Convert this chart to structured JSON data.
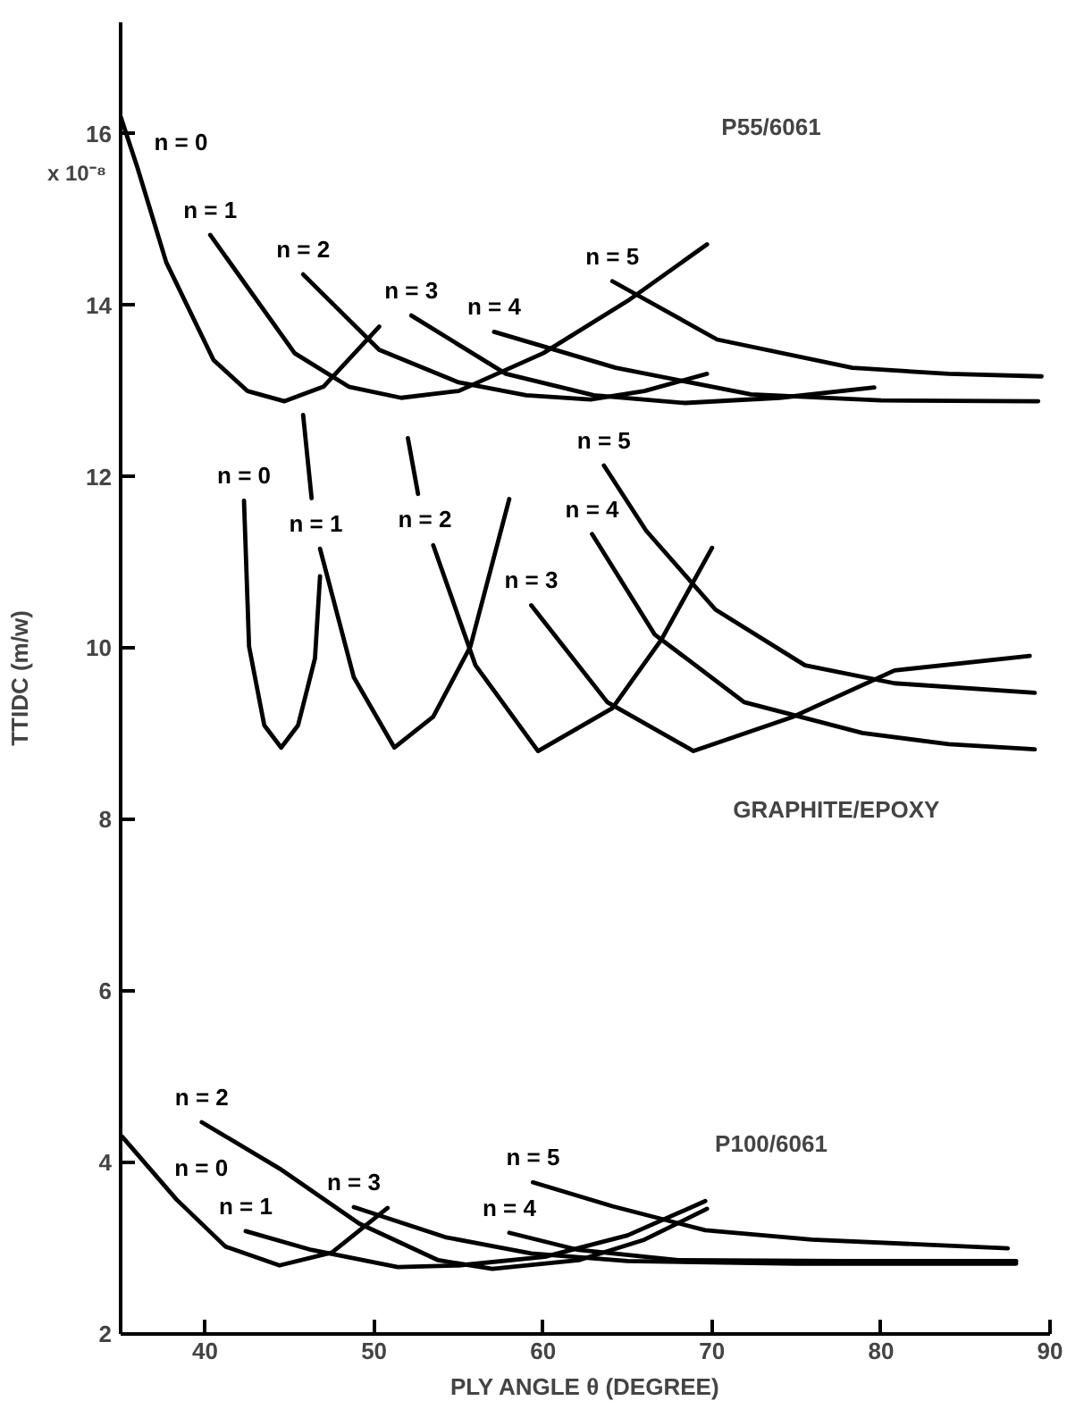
{
  "chart_data": {
    "type": "line",
    "xlabel": "PLY ANGLE θ (DEGREE)",
    "ylabel": "TTIDC (m/w)",
    "xlim": [
      35,
      90
    ],
    "ylim": [
      2,
      17.3
    ],
    "xticks": [
      40,
      50,
      60,
      70,
      80,
      90
    ],
    "yticks": [
      2,
      4,
      6,
      8,
      10,
      12,
      14,
      16
    ],
    "grid": false,
    "legend": false,
    "marker": "none",
    "line_style": "solid",
    "series": [
      {
        "name": "n = 0",
        "color": "#000000",
        "x": [
          35,
          36,
          37.7,
          40.5,
          42.5,
          44.7,
          47,
          50.3
        ],
        "values": [
          16.2,
          15.6,
          14.5,
          13.36,
          13.0,
          12.88,
          13.05,
          13.75
        ]
      },
      {
        "name": "n = 1",
        "color": "#000000",
        "x": [
          40.3,
          45.3,
          48.5,
          51.6,
          55,
          60,
          65,
          69.7
        ],
        "values": [
          14.82,
          13.44,
          13.05,
          12.92,
          13.0,
          13.44,
          14.05,
          14.71
        ]
      },
      {
        "name": "n = 2",
        "color": "#000000",
        "x": [
          45.8,
          50.3,
          55,
          59,
          62.8,
          66,
          69.7
        ],
        "values": [
          14.36,
          13.48,
          13.1,
          12.95,
          12.9,
          13.0,
          13.2
        ]
      },
      {
        "name": "n = 3",
        "color": "#000000",
        "x": [
          52.2,
          57.8,
          63,
          68.4,
          74,
          79.6
        ],
        "values": [
          13.88,
          13.2,
          12.95,
          12.86,
          12.92,
          13.04
        ]
      },
      {
        "name": "n = 4",
        "color": "#000000",
        "x": [
          57.1,
          64.3,
          72.3,
          80,
          89.3
        ],
        "values": [
          13.69,
          13.27,
          12.96,
          12.89,
          12.88
        ]
      },
      {
        "name": "n = 5",
        "color": "#000000",
        "x": [
          64.1,
          70.3,
          78.3,
          84,
          89.5
        ],
        "values": [
          14.28,
          13.6,
          13.27,
          13.2,
          13.17
        ]
      },
      {
        "name": "n = 0",
        "color": "#000000",
        "x": [
          42.3,
          42.6,
          43.5,
          44.5,
          45.5,
          46.5,
          46.8
        ],
        "values": [
          11.72,
          10.02,
          9.1,
          8.84,
          9.1,
          9.88,
          10.84
        ]
      },
      {
        "name": "n = 1",
        "color": "#000000",
        "x": [
          45.8,
          46.3,
          46.55,
          46.8,
          48.8,
          51.2,
          53.5,
          55.7,
          58.0
        ],
        "values": [
          12.72,
          11.75,
          null,
          11.16,
          9.66,
          8.84,
          9.2,
          10.02,
          11.74
        ]
      },
      {
        "name": "n = 2",
        "color": "#000000",
        "x": [
          52.0,
          52.6,
          53.0,
          53.5,
          56.0,
          59.7,
          64.1,
          67,
          70.0
        ],
        "values": [
          12.45,
          11.8,
          null,
          11.2,
          9.8,
          8.8,
          9.3,
          10.1,
          11.17
        ]
      },
      {
        "name": "n = 3",
        "color": "#000000",
        "x": [
          59.3,
          63.8,
          68.9,
          74.8,
          80.8,
          88.8
        ],
        "values": [
          10.5,
          9.37,
          8.8,
          9.2,
          9.74,
          9.91
        ]
      },
      {
        "name": "n = 4",
        "color": "#000000",
        "x": [
          62.9,
          66.6,
          71.9,
          78.9,
          84,
          89.1
        ],
        "values": [
          11.33,
          10.16,
          9.37,
          9.01,
          8.88,
          8.82
        ]
      },
      {
        "name": "n = 5",
        "color": "#000000",
        "x": [
          63.6,
          66.1,
          70.2,
          75.5,
          80.8,
          89.1
        ],
        "values": [
          12.13,
          11.37,
          10.45,
          9.8,
          9.59,
          9.48
        ]
      },
      {
        "name": "n = 0",
        "color": "#000000",
        "x": [
          35.1,
          38.3,
          41.2,
          44.4,
          47.5,
          50.8
        ],
        "values": [
          4.3,
          3.57,
          3.02,
          2.8,
          2.95,
          3.47
        ]
      },
      {
        "name": "n = 1",
        "color": "#000000",
        "x": [
          42.4,
          46.3,
          51.4,
          55,
          60.1,
          65,
          69.6
        ],
        "values": [
          3.2,
          2.98,
          2.78,
          2.8,
          2.9,
          3.15,
          3.55
        ]
      },
      {
        "name": "n = 2",
        "color": "#000000",
        "x": [
          39.8,
          44.4,
          49.1,
          53.8,
          57.0,
          62.1,
          66,
          69.7
        ],
        "values": [
          4.47,
          3.93,
          3.29,
          2.86,
          2.76,
          2.86,
          3.1,
          3.46
        ]
      },
      {
        "name": "n = 3",
        "color": "#000000",
        "x": [
          48.8,
          54.2,
          59.3,
          65,
          75,
          88
        ],
        "values": [
          3.48,
          3.13,
          2.94,
          2.85,
          2.82,
          2.82
        ]
      },
      {
        "name": "n = 4",
        "color": "#000000",
        "x": [
          58.0,
          62.1,
          68.0,
          78,
          88
        ],
        "values": [
          3.18,
          2.98,
          2.86,
          2.85,
          2.85
        ]
      },
      {
        "name": "n = 5",
        "color": "#000000",
        "x": [
          59.4,
          64.1,
          69.6,
          75.9,
          87.5
        ],
        "values": [
          3.77,
          3.49,
          3.21,
          3.1,
          3.0
        ]
      }
    ],
    "annotations": [
      "x 10⁻⁸",
      "P55/6061",
      "GRAPHITE/EPOXY",
      "P100/6061"
    ]
  }
}
